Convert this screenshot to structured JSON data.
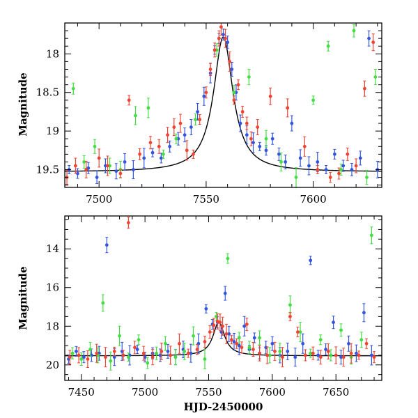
{
  "chart_data": [
    {
      "type": "scatter",
      "xlabel": "",
      "ylabel": "Magnitude",
      "xlim": [
        7484,
        7632
      ],
      "ylim": [
        19.73,
        17.6
      ],
      "y_inverted": true,
      "x_ticks": [
        7500,
        7550,
        7600
      ],
      "y_ticks": [
        18,
        18.5,
        19,
        19.5
      ],
      "curve": {
        "color": "#000000",
        "baseline": 19.53,
        "peak_x": 7558,
        "peak_y": 17.78,
        "width_days": 5.5
      },
      "series": [
        {
          "color": "#3355dd",
          "x": [
            7486,
            7490,
            7495,
            7499,
            7503,
            7508,
            7512,
            7516,
            7521,
            7525,
            7529,
            7533,
            7537,
            7540,
            7543,
            7546,
            7549,
            7552,
            7554,
            7556,
            7558,
            7560,
            7562,
            7564,
            7566,
            7569,
            7572,
            7575,
            7578,
            7581,
            7584,
            7587,
            7590,
            7594,
            7598,
            7602,
            7606,
            7610,
            7614,
            7618,
            7622,
            7626,
            7630
          ],
          "y": [
            19.5,
            19.55,
            19.48,
            19.6,
            19.45,
            19.52,
            19.4,
            19.5,
            19.35,
            19.28,
            19.35,
            19.2,
            19.1,
            19.05,
            18.95,
            18.75,
            18.55,
            18.25,
            17.95,
            17.8,
            17.75,
            17.85,
            18.2,
            18.5,
            18.9,
            19.05,
            19.15,
            19.2,
            19.25,
            19.1,
            19.3,
            19.4,
            18.9,
            19.35,
            19.45,
            19.4,
            19.5,
            19.3,
            19.45,
            19.5,
            19.35,
            17.8,
            19.5
          ]
        },
        {
          "color": "#44dd44",
          "x": [
            7488,
            7493,
            7498,
            7505,
            7510,
            7517,
            7523,
            7530,
            7536,
            7545,
            7555,
            7563,
            7570,
            7578,
            7585,
            7592,
            7600,
            7607,
            7613,
            7619,
            7625,
            7629
          ],
          "y": [
            18.45,
            19.4,
            19.2,
            19.45,
            19.5,
            18.8,
            18.7,
            19.3,
            19.1,
            18.85,
            17.95,
            18.5,
            18.3,
            19.1,
            19.4,
            19.6,
            18.6,
            17.9,
            19.5,
            17.7,
            19.6,
            18.3
          ]
        },
        {
          "color": "#ee4433",
          "x": [
            7485,
            7489,
            7494,
            7500,
            7504,
            7510,
            7514,
            7519,
            7524,
            7528,
            7532,
            7535,
            7538,
            7541,
            7544,
            7547,
            7550,
            7552,
            7554,
            7556,
            7557,
            7559,
            7561,
            7563,
            7565,
            7567,
            7569,
            7571,
            7574,
            7580,
            7588,
            7596,
            7602,
            7608,
            7612,
            7616,
            7620,
            7624,
            7628
          ],
          "y": [
            19.6,
            19.45,
            19.5,
            19.35,
            19.45,
            19.55,
            18.6,
            19.3,
            19.15,
            19.2,
            19.05,
            18.95,
            18.9,
            19.25,
            19.3,
            18.85,
            18.5,
            18.2,
            17.95,
            17.8,
            17.65,
            17.8,
            18.1,
            18.6,
            18.4,
            18.75,
            18.9,
            19.1,
            18.95,
            18.55,
            18.7,
            19.2,
            19.5,
            19.6,
            19.55,
            19.3,
            19.45,
            18.45,
            17.85
          ]
        }
      ]
    },
    {
      "type": "scatter",
      "xlabel": "HJD-2450000",
      "ylabel": "Magnitude",
      "xlim": [
        7437,
        7686
      ],
      "ylim": [
        20.8,
        12.3
      ],
      "y_inverted": true,
      "x_ticks": [
        7450,
        7500,
        7550,
        7600,
        7650
      ],
      "y_ticks": [
        14,
        16,
        18,
        20
      ],
      "curve": {
        "color": "#000000",
        "baseline": 19.53,
        "peak_x": 7558,
        "peak_y": 17.78,
        "width_days": 5.5
      },
      "series": [
        {
          "color": "#3355dd",
          "x": [
            7440,
            7446,
            7452,
            7458,
            7464,
            7470,
            7476,
            7482,
            7488,
            7494,
            7500,
            7506,
            7512,
            7518,
            7524,
            7530,
            7536,
            7542,
            7548,
            7553,
            7557,
            7560,
            7563,
            7566,
            7570,
            7574,
            7578,
            7582,
            7586,
            7590,
            7595,
            7600,
            7606,
            7612,
            7618,
            7624,
            7630,
            7636,
            7642,
            7648,
            7654,
            7660,
            7666,
            7672,
            7678
          ],
          "y": [
            19.7,
            19.3,
            19.6,
            19.5,
            19.4,
            13.8,
            19.6,
            19.3,
            19.5,
            19.2,
            19.6,
            19.4,
            19.5,
            19.3,
            19.6,
            19.2,
            19.4,
            18.9,
            17.1,
            17.9,
            17.8,
            18.3,
            16.3,
            18.4,
            18.8,
            19.0,
            18.0,
            19.2,
            18.6,
            19.4,
            19.1,
            18.9,
            19.5,
            19.3,
            19.6,
            18.9,
            14.6,
            19.5,
            19.2,
            17.8,
            19.6,
            18.9,
            19.4,
            17.3,
            19.5
          ]
        },
        {
          "color": "#44dd44",
          "x": [
            7443,
            7450,
            7457,
            7463,
            7467,
            7473,
            7480,
            7487,
            7495,
            7502,
            7509,
            7516,
            7524,
            7531,
            7538,
            7547,
            7556,
            7565,
            7574,
            7582,
            7590,
            7598,
            7606,
            7614,
            7622,
            7630,
            7638,
            7646,
            7654,
            7662,
            7670,
            7678
          ],
          "y": [
            19.4,
            19.7,
            19.2,
            19.5,
            16.8,
            19.8,
            18.5,
            19.6,
            18.7,
            19.9,
            19.4,
            18.9,
            19.6,
            19.3,
            18.5,
            19.7,
            17.5,
            14.5,
            18.6,
            19.1,
            18.6,
            19.5,
            19.3,
            16.9,
            18.3,
            19.4,
            18.7,
            19.5,
            18.2,
            19.6,
            18.7,
            13.3
          ]
        },
        {
          "color": "#ee4433",
          "x": [
            7441,
            7448,
            7455,
            7462,
            7469,
            7476,
            7483,
            7487,
            7492,
            7499,
            7506,
            7513,
            7520,
            7527,
            7534,
            7541,
            7547,
            7551,
            7554,
            7557,
            7559,
            7561,
            7564,
            7568,
            7572,
            7576,
            7580,
            7585,
            7590,
            7596,
            7602,
            7608,
            7614,
            7620,
            7626,
            7632,
            7638,
            7644,
            7650,
            7656,
            7662,
            7668,
            7674,
            7680
          ],
          "y": [
            19.6,
            19.5,
            19.7,
            19.4,
            19.6,
            19.3,
            19.5,
            12.65,
            19.1,
            19.4,
            19.6,
            19.3,
            19.5,
            18.9,
            19.4,
            19.2,
            18.8,
            18.3,
            17.95,
            17.75,
            17.8,
            18.0,
            18.4,
            18.7,
            18.9,
            19.1,
            17.9,
            19.2,
            19.4,
            19.5,
            19.3,
            19.6,
            17.5,
            18.3,
            19.5,
            19.4,
            19.6,
            19.3,
            19.5,
            19.6,
            19.4,
            19.5,
            18.9,
            19.6
          ]
        }
      ]
    }
  ]
}
